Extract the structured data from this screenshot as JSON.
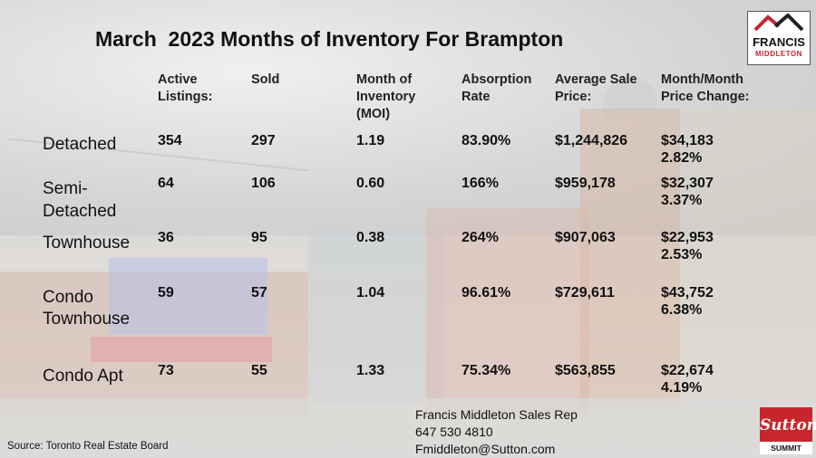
{
  "title": "March  2023 Months of Inventory For Brampton",
  "headers": {
    "active": [
      "Active",
      "Listings:"
    ],
    "sold": [
      "Sold"
    ],
    "moi": [
      "Month of",
      "Inventory",
      "(MOI)"
    ],
    "absorption": [
      "Absorption",
      "Rate"
    ],
    "avg_price": [
      "Average Sale",
      "Price:"
    ],
    "change": [
      "Month/Month",
      "Price Change:"
    ]
  },
  "rows": [
    {
      "label": [
        "Detached"
      ],
      "active": "354",
      "sold": "297",
      "moi": "1.19",
      "absorption": "83.90%",
      "avg_price": "$1,244,826",
      "change_amount": "$34,183",
      "change_pct": "2.82%"
    },
    {
      "label": [
        "Semi-",
        "Detached"
      ],
      "active": "64",
      "sold": "106",
      "moi": "0.60",
      "absorption": "166%",
      "avg_price": "$959,178",
      "change_amount": "$32,307",
      "change_pct": "3.37%"
    },
    {
      "label": [
        "Townhouse"
      ],
      "active": "36",
      "sold": "95",
      "moi": "0.38",
      "absorption": "264%",
      "avg_price": "$907,063",
      "change_amount": "$22,953",
      "change_pct": "2.53%"
    },
    {
      "label": [
        "Condo",
        "Townhouse"
      ],
      "active": "59",
      "sold": "57",
      "moi": "1.04",
      "absorption": "96.61%",
      "avg_price": "$729,611",
      "change_amount": "$43,752",
      "change_pct": "6.38%"
    },
    {
      "label": [
        "Condo Apt"
      ],
      "active": "73",
      "sold": "55",
      "moi": "1.33",
      "absorption": "75.34%",
      "avg_price": "$563,855",
      "change_amount": "$22,674",
      "change_pct": "4.19%"
    }
  ],
  "logo": {
    "line1": "FRANCIS",
    "line2": "MIDDLETON",
    "accent": "#c8262c"
  },
  "contact": [
    "Francis Middleton Sales Rep",
    "647 530 4810",
    "Fmiddleton@Sutton.com"
  ],
  "source": "Source: Toronto Real Estate Board",
  "sutton": {
    "name": "Sutton",
    "tag": "SUMMIT",
    "color": "#c8262c"
  },
  "background_icon": "street-scene-image"
}
